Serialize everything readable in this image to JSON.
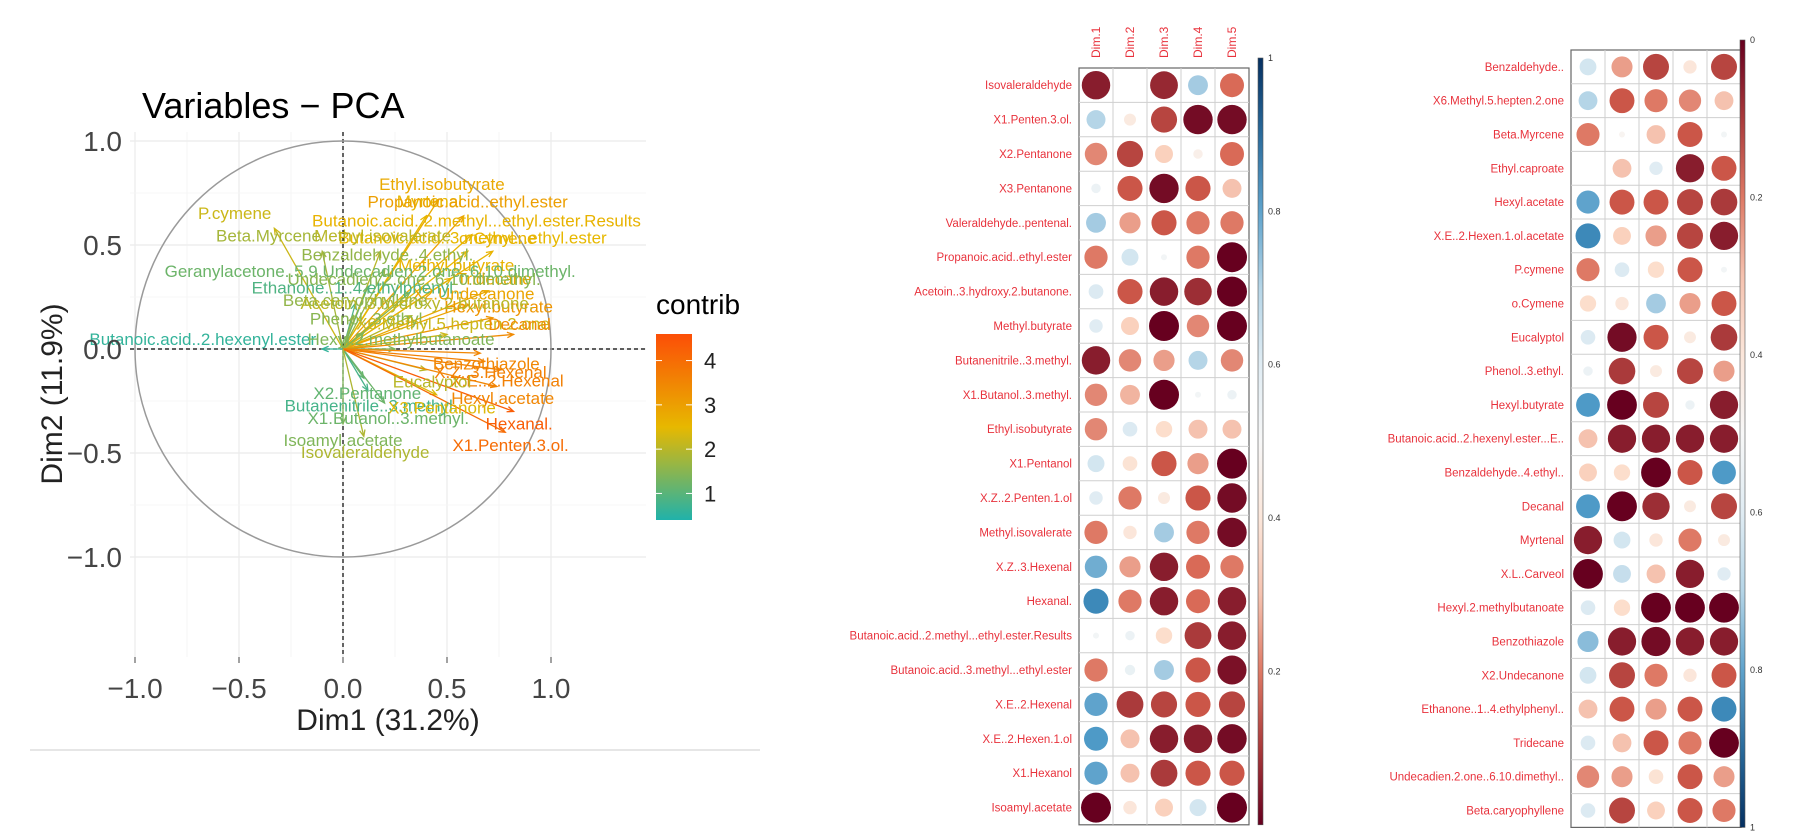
{
  "chart_data": [
    {
      "type": "scatter",
      "subtype": "pca-variable-correlation-circle",
      "title": "Variables − PCA",
      "xlabel": "Dim1 (31.2%)",
      "ylabel": "Dim2 (11.9%)",
      "xlim": [
        -1.0,
        1.0
      ],
      "ylim": [
        -1.0,
        1.0
      ],
      "xticks": [
        "−1.0",
        "−0.5",
        "0.0",
        "0.5",
        "1.0"
      ],
      "yticks": [
        "1.0",
        "0.5",
        "0.0",
        "−0.5",
        "−1.0"
      ],
      "grid": true,
      "legend": {
        "title": "contrib",
        "placement": "right",
        "ticks": [
          "4",
          "3",
          "2",
          "1"
        ],
        "range": [
          0.4,
          4.6
        ],
        "colors": [
          "#20b2aa",
          "#e7b800",
          "#fc4e07"
        ]
      },
      "variables": [
        {
          "label": "Ethyl.isobutyrate",
          "x": 0.46,
          "y": 0.72,
          "contrib": 2.8
        },
        {
          "label": "Myrtenal",
          "x": 0.4,
          "y": 0.64,
          "contrib": 2.5
        },
        {
          "label": "Propanoic.acid..ethyl.ester",
          "x": 0.58,
          "y": 0.64,
          "contrib": 3.0
        },
        {
          "label": "P.cymene",
          "x": -0.33,
          "y": 0.58,
          "contrib": 2.2
        },
        {
          "label": "Butanoic.acid..2.methyl...ethyl.ester.Results",
          "x": 0.62,
          "y": 0.55,
          "contrib": 2.6
        },
        {
          "label": "Butanoic.acid..3.methyl...ethyl.ester",
          "x": 0.6,
          "y": 0.47,
          "contrib": 2.5
        },
        {
          "label": "o.Cymene",
          "x": 0.72,
          "y": 0.47,
          "contrib": 2.6
        },
        {
          "label": "Beta.Myrcene",
          "x": -0.1,
          "y": 0.47,
          "contrib": 1.8
        },
        {
          "label": "Methyl.isovalerate",
          "x": 0.18,
          "y": 0.47,
          "contrib": 2.0
        },
        {
          "label": "Benzaldehyde..4.ethyl.",
          "x": 0.2,
          "y": 0.38,
          "contrib": 1.6
        },
        {
          "label": "Methyl.butyrate",
          "x": 0.52,
          "y": 0.34,
          "contrib": 2.6
        },
        {
          "label": "Tridecane",
          "x": 0.7,
          "y": 0.28,
          "contrib": 2.8
        },
        {
          "label": "Geranylacetone..5.9.Undecadien.2.one..6.10.dimethyl.",
          "x": 0.12,
          "y": 0.3,
          "contrib": 1.2
        },
        {
          "label": "Undecadien.2.one..6.10.dimethyl.",
          "x": 0.32,
          "y": 0.27,
          "contrib": 1.5
        },
        {
          "label": "X2.Undecanone",
          "x": 0.6,
          "y": 0.21,
          "contrib": 2.9
        },
        {
          "label": "Ethanone..1..4.ethylphenyl..",
          "x": 0.06,
          "y": 0.22,
          "contrib": 0.9
        },
        {
          "label": "Hexyl.butyrate",
          "x": 0.72,
          "y": 0.15,
          "contrib": 3.2
        },
        {
          "label": "Beta.caryophyllene",
          "x": 0.05,
          "y": 0.16,
          "contrib": 1.6
        },
        {
          "label": "Acetoin..3.hydroxy.2.butanone.",
          "x": 0.33,
          "y": 0.16,
          "contrib": 2.0
        },
        {
          "label": "Phenol..3.ethyl.",
          "x": 0.1,
          "y": 0.08,
          "contrib": 1.5
        },
        {
          "label": "X6.Methyl.5.hepten.2.one",
          "x": 0.5,
          "y": 0.07,
          "contrib": 2.2
        },
        {
          "label": "Decanal",
          "x": 0.82,
          "y": 0.07,
          "contrib": 3.4
        },
        {
          "label": "Butanoic.acid..2.hexenyl.ester",
          "x": -0.1,
          "y": 0.0,
          "contrib": 0.6
        },
        {
          "label": "Hexyl.2.methylbutanoate",
          "x": 0.25,
          "y": 0.0,
          "contrib": 1.4
        },
        {
          "label": "Benzothiazole",
          "x": 0.66,
          "y": -0.02,
          "contrib": 3.5
        },
        {
          "label": "X.E..2.Hexenal",
          "x": 0.76,
          "y": -0.1,
          "contrib": 3.6
        },
        {
          "label": "Eucalyptol",
          "x": 0.4,
          "y": -0.1,
          "contrib": 2.0
        },
        {
          "label": "X.Z..3.Hexenal",
          "x": 0.68,
          "y": -0.06,
          "contrib": 3.6
        },
        {
          "label": "X2.Pentanone",
          "x": 0.1,
          "y": -0.14,
          "contrib": 1.1
        },
        {
          "label": "Hexyl.acetate",
          "x": 0.74,
          "y": -0.18,
          "contrib": 3.5
        },
        {
          "label": "Butanenitrile..3.methyl.",
          "x": 0.12,
          "y": -0.2,
          "contrib": 0.8
        },
        {
          "label": "X3.Pentanone",
          "x": 0.45,
          "y": -0.22,
          "contrib": 2.4
        },
        {
          "label": "Hexanal.",
          "x": 0.82,
          "y": -0.3,
          "contrib": 4.3
        },
        {
          "label": "X1.Butanol..3.methyl.",
          "x": 0.2,
          "y": -0.26,
          "contrib": 1.2
        },
        {
          "label": "X1.Penten.3.ol.",
          "x": 0.78,
          "y": -0.4,
          "contrib": 4.0
        },
        {
          "label": "Isoamyl.acetate",
          "x": 0.0,
          "y": -0.36,
          "contrib": 1.4
        },
        {
          "label": "Isovaleraldehyde",
          "x": 0.1,
          "y": -0.42,
          "contrib": 1.9
        }
      ]
    },
    {
      "type": "heatmap",
      "subtype": "correlation-dot-matrix",
      "columns": [
        "Dim.1",
        "Dim.2",
        "Dim.3",
        "Dim.4",
        "Dim.5"
      ],
      "colorbar": {
        "ticks": [
          "1",
          "0.8",
          "0.6",
          "0.4",
          "0.2"
        ],
        "range": [
          0,
          1
        ],
        "placement": "right"
      },
      "rows": [
        {
          "label": "Isovaleraldehyde",
          "values": [
            0.05,
            0.5,
            0.07,
            0.72,
            0.18
          ]
        },
        {
          "label": "X1.Penten.3.ol.",
          "values": [
            0.7,
            0.42,
            0.12,
            0.02,
            0.02
          ]
        },
        {
          "label": "X2.Pentanone",
          "values": [
            0.22,
            0.12,
            0.32,
            0.45,
            0.18
          ]
        },
        {
          "label": "X3.Pentanone",
          "values": [
            0.55,
            0.15,
            0.02,
            0.15,
            0.3
          ]
        },
        {
          "label": "Valeraldehyde..pentenal.",
          "values": [
            0.72,
            0.25,
            0.15,
            0.2,
            0.2
          ]
        },
        {
          "label": "Propanoic.acid..ethyl.ester",
          "values": [
            0.2,
            0.66,
            0.52,
            0.2,
            0.0
          ]
        },
        {
          "label": "Acetoin..3.hydroxy.2.butanone.",
          "values": [
            0.62,
            0.15,
            0.05,
            0.08,
            0.0
          ]
        },
        {
          "label": "Methyl.butyrate",
          "values": [
            0.6,
            0.32,
            0.0,
            0.22,
            0.0
          ]
        },
        {
          "label": "Butanenitrile..3.methyl.",
          "values": [
            0.05,
            0.22,
            0.25,
            0.7,
            0.22
          ]
        },
        {
          "label": "X1.Butanol..3.methyl.",
          "values": [
            0.22,
            0.28,
            0.0,
            0.52,
            0.55
          ]
        },
        {
          "label": "Ethyl.isobutyrate",
          "values": [
            0.22,
            0.62,
            0.35,
            0.3,
            0.3
          ]
        },
        {
          "label": "X1.Pentanol",
          "values": [
            0.66,
            0.38,
            0.15,
            0.25,
            0.0
          ]
        },
        {
          "label": "X.Z..2.Penten.1.ol",
          "values": [
            0.6,
            0.2,
            0.42,
            0.15,
            0.02
          ]
        },
        {
          "label": "Methyl.isovalerate",
          "values": [
            0.2,
            0.4,
            0.72,
            0.2,
            0.02
          ]
        },
        {
          "label": "X.Z..3.Hexenal",
          "values": [
            0.78,
            0.25,
            0.05,
            0.18,
            0.2
          ]
        },
        {
          "label": "Hexanal.",
          "values": [
            0.85,
            0.2,
            0.05,
            0.18,
            0.05
          ]
        },
        {
          "label": "Butanoic.acid..2.methyl...ethyl.ester.Results",
          "values": [
            0.52,
            0.55,
            0.35,
            0.1,
            0.05
          ]
        },
        {
          "label": "Butanoic.acid..3.methyl...ethyl.ester",
          "values": [
            0.2,
            0.56,
            0.72,
            0.15,
            0.03
          ]
        },
        {
          "label": "X.E..2.Hexenal",
          "values": [
            0.8,
            0.1,
            0.12,
            0.15,
            0.12
          ]
        },
        {
          "label": "X.E..2.Hexen.1.ol",
          "values": [
            0.82,
            0.3,
            0.05,
            0.05,
            0.02
          ]
        },
        {
          "label": "X1.Hexanol",
          "values": [
            0.8,
            0.3,
            0.1,
            0.15,
            0.15
          ]
        },
        {
          "label": "Isoamyl.acetate",
          "values": [
            0.0,
            0.4,
            0.32,
            0.66,
            0.0
          ]
        }
      ]
    },
    {
      "type": "heatmap",
      "subtype": "correlation-dot-matrix",
      "columns": [
        "Dim.1",
        "Dim.2",
        "Dim.3",
        "Dim.4",
        "Dim.5"
      ],
      "colorbar": {
        "ticks": [
          "0",
          "0.2",
          "0.4",
          "0.6",
          "0.8",
          "1"
        ],
        "range": [
          0,
          1
        ],
        "placement": "right"
      },
      "rows": [
        {
          "label": "Benzaldehyde..",
          "values": [
            0.66,
            0.25,
            0.12,
            0.4,
            0.12
          ]
        },
        {
          "label": "X6.Methyl.5.hepten.2.one",
          "values": [
            0.7,
            0.15,
            0.2,
            0.22,
            0.3
          ]
        },
        {
          "label": "Beta.Myrcene",
          "values": [
            0.2,
            0.48,
            0.3,
            0.15,
            0.52
          ]
        },
        {
          "label": "Ethyl.caproate",
          "values": [
            0.5,
            0.3,
            0.6,
            0.05,
            0.15
          ]
        },
        {
          "label": "Hexyl.acetate",
          "values": [
            0.8,
            0.15,
            0.15,
            0.12,
            0.1
          ]
        },
        {
          "label": "X.E..2.Hexen.1.ol.acetate",
          "values": [
            0.85,
            0.32,
            0.25,
            0.12,
            0.05
          ]
        },
        {
          "label": "P.cymene",
          "values": [
            0.2,
            0.62,
            0.35,
            0.15,
            0.52
          ]
        },
        {
          "label": "o.Cymene",
          "values": [
            0.35,
            0.4,
            0.72,
            0.25,
            0.15
          ]
        },
        {
          "label": "Eucalyptol",
          "values": [
            0.62,
            0.02,
            0.15,
            0.42,
            0.1
          ]
        },
        {
          "label": "Phenol..3.ethyl.",
          "values": [
            0.55,
            0.1,
            0.42,
            0.12,
            0.25
          ]
        },
        {
          "label": "Hexyl.butyrate",
          "values": [
            0.82,
            0.0,
            0.12,
            0.55,
            0.05
          ]
        },
        {
          "label": "Butanoic.acid..2.hexenyl.ester...E..",
          "values": [
            0.3,
            0.05,
            0.05,
            0.05,
            0.05
          ]
        },
        {
          "label": "Benzaldehyde..4.ethyl..",
          "values": [
            0.32,
            0.35,
            0.0,
            0.15,
            0.82
          ]
        },
        {
          "label": "Decanal",
          "values": [
            0.82,
            0.0,
            0.08,
            0.42,
            0.12
          ]
        },
        {
          "label": "Myrtenal",
          "values": [
            0.05,
            0.66,
            0.4,
            0.2,
            0.42
          ]
        },
        {
          "label": "X.L..Carveol",
          "values": [
            0.0,
            0.68,
            0.3,
            0.05,
            0.6
          ]
        },
        {
          "label": "Hexyl.2.methylbutanoate",
          "values": [
            0.62,
            0.35,
            0.0,
            0.0,
            0.0
          ]
        },
        {
          "label": "Benzothiazole",
          "values": [
            0.75,
            0.05,
            0.02,
            0.05,
            0.05
          ]
        },
        {
          "label": "X2.Undecanone",
          "values": [
            0.66,
            0.12,
            0.2,
            0.4,
            0.15
          ]
        },
        {
          "label": "Ethanone..1..4.ethylphenyl..",
          "values": [
            0.3,
            0.15,
            0.25,
            0.15,
            0.85
          ]
        },
        {
          "label": "Tridecane",
          "values": [
            0.62,
            0.3,
            0.15,
            0.2,
            0.0
          ]
        },
        {
          "label": "Undecadien.2.one..6.10.dimethyl..",
          "values": [
            0.22,
            0.25,
            0.38,
            0.15,
            0.25
          ]
        },
        {
          "label": "Beta.caryophyllene",
          "values": [
            0.62,
            0.12,
            0.32,
            0.15,
            0.2
          ]
        }
      ]
    }
  ]
}
